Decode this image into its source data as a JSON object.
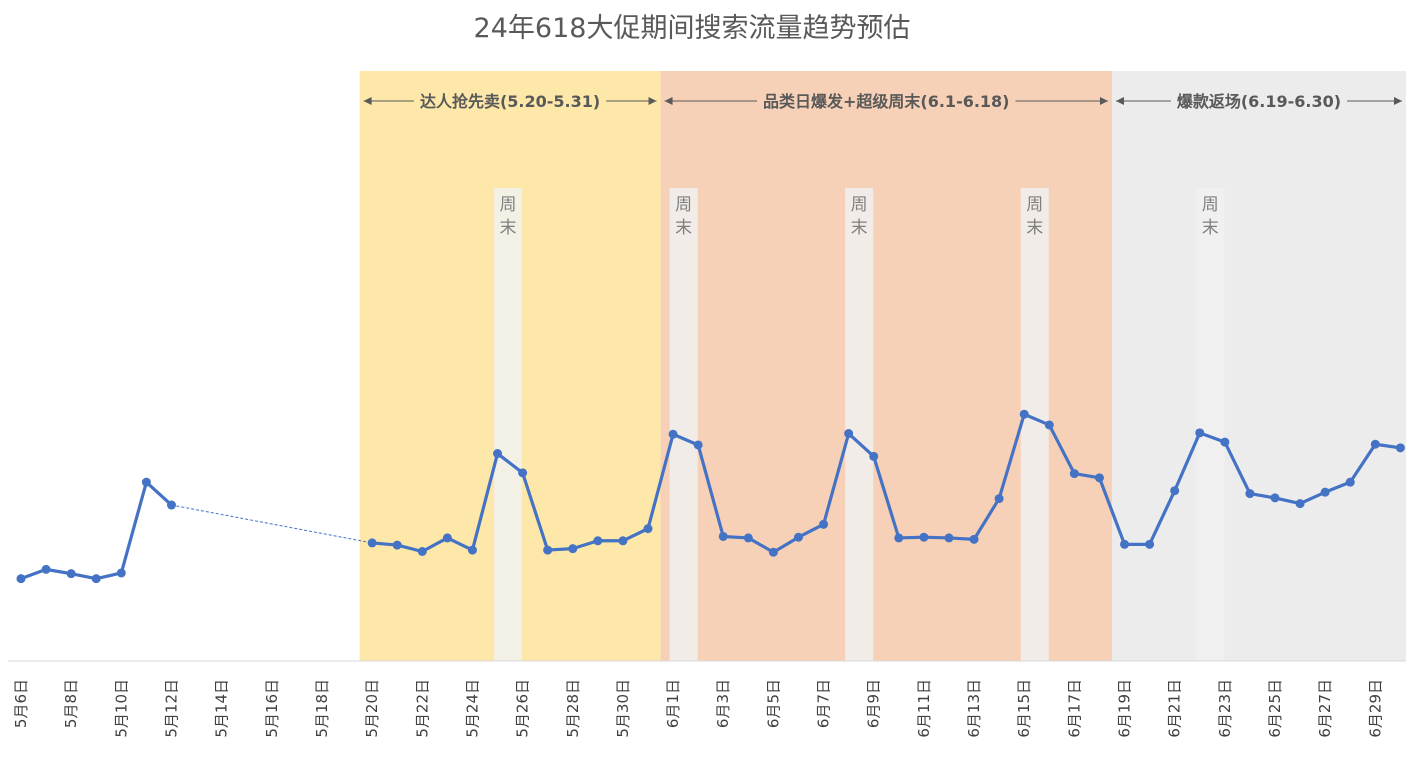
{
  "title": "24年618大促期间搜索流量趋势预估",
  "colors": {
    "line": "#4472c4",
    "band_presale": "#fde8a9",
    "band_category": "#f7d1b7",
    "band_return": "#ececec",
    "weekend_band": "#f1f1f1",
    "axis": "#d9d9d9",
    "arrow": "#595959"
  },
  "chart_data": {
    "type": "line",
    "title": "24年618大促期间搜索流量趋势预估",
    "xlabel": "",
    "ylabel": "",
    "y_axis_visible": false,
    "grid": false,
    "ylim": [
      0,
      100
    ],
    "x": [
      "5月6日",
      "5月7日",
      "5月8日",
      "5月9日",
      "5月10日",
      "5月11日",
      "5月12日",
      "5月13日",
      "5月14日",
      "5月15日",
      "5月16日",
      "5月17日",
      "5月18日",
      "5月19日",
      "5月20日",
      "5月21日",
      "5月22日",
      "5月23日",
      "5月24日",
      "5月25日",
      "5月26日",
      "5月27日",
      "5月28日",
      "5月29日",
      "5月30日",
      "5月31日",
      "6月1日",
      "6月2日",
      "6月3日",
      "6月4日",
      "6月5日",
      "6月6日",
      "6月7日",
      "6月8日",
      "6月9日",
      "6月10日",
      "6月11日",
      "6月12日",
      "6月13日",
      "6月14日",
      "6月15日",
      "6月16日",
      "6月17日",
      "6月18日",
      "6月19日",
      "6月20日",
      "6月21日",
      "6月22日",
      "6月23日",
      "6月24日",
      "6月25日",
      "6月26日",
      "6月27日",
      "6月28日",
      "6月29日",
      "6月30日"
    ],
    "tick_labels": [
      "5月6日",
      "5月8日",
      "5月10日",
      "5月12日",
      "5月14日",
      "5月16日",
      "5月18日",
      "5月20日",
      "5月22日",
      "5月24日",
      "5月26日",
      "5月28日",
      "5月30日",
      "6月1日",
      "6月3日",
      "6月5日",
      "6月7日",
      "6月9日",
      "6月11日",
      "6月13日",
      "6月15日",
      "6月17日",
      "6月19日",
      "6月21日",
      "6月23日",
      "6月25日",
      "6月27日",
      "6月29日"
    ],
    "values": [
      45.5,
      46.8,
      46.2,
      45.5,
      46.3,
      59.0,
      55.8,
      null,
      null,
      null,
      null,
      null,
      null,
      null,
      50.5,
      50.2,
      49.3,
      51.2,
      49.5,
      63.0,
      60.3,
      49.5,
      49.7,
      50.8,
      50.8,
      52.5,
      65.7,
      64.2,
      51.4,
      51.2,
      49.2,
      51.3,
      53.1,
      65.8,
      62.6,
      51.2,
      51.3,
      51.2,
      51.0,
      56.7,
      68.5,
      67.0,
      60.2,
      59.6,
      50.3,
      50.3,
      57.8,
      65.9,
      64.6,
      57.4,
      56.8,
      56.0,
      57.6,
      59.0,
      64.3,
      63.8
    ],
    "gap_connector": {
      "from": "5月12日",
      "to": "5月20日",
      "style": "dashed"
    },
    "phases": [
      {
        "label": "达人抢先卖(5.20-5.31)",
        "start": "5月20日",
        "end": "5月31日",
        "color": "#fde8a9"
      },
      {
        "label": "品类日爆发+超级周末(6.1-6.18)",
        "start": "6月1日",
        "end": "6月18日",
        "color": "#f7d1b7"
      },
      {
        "label": "爆款返场(6.19-6.30)",
        "start": "6月19日",
        "end": "6月30日",
        "color": "#ececec"
      }
    ],
    "weekends": [
      {
        "label": "周末",
        "date": "5月25日"
      },
      {
        "label": "周末",
        "date": "6月1日"
      },
      {
        "label": "周末",
        "date": "6月8日"
      },
      {
        "label": "周末",
        "date": "6月15日"
      },
      {
        "label": "周末",
        "date": "6月22日"
      }
    ]
  }
}
